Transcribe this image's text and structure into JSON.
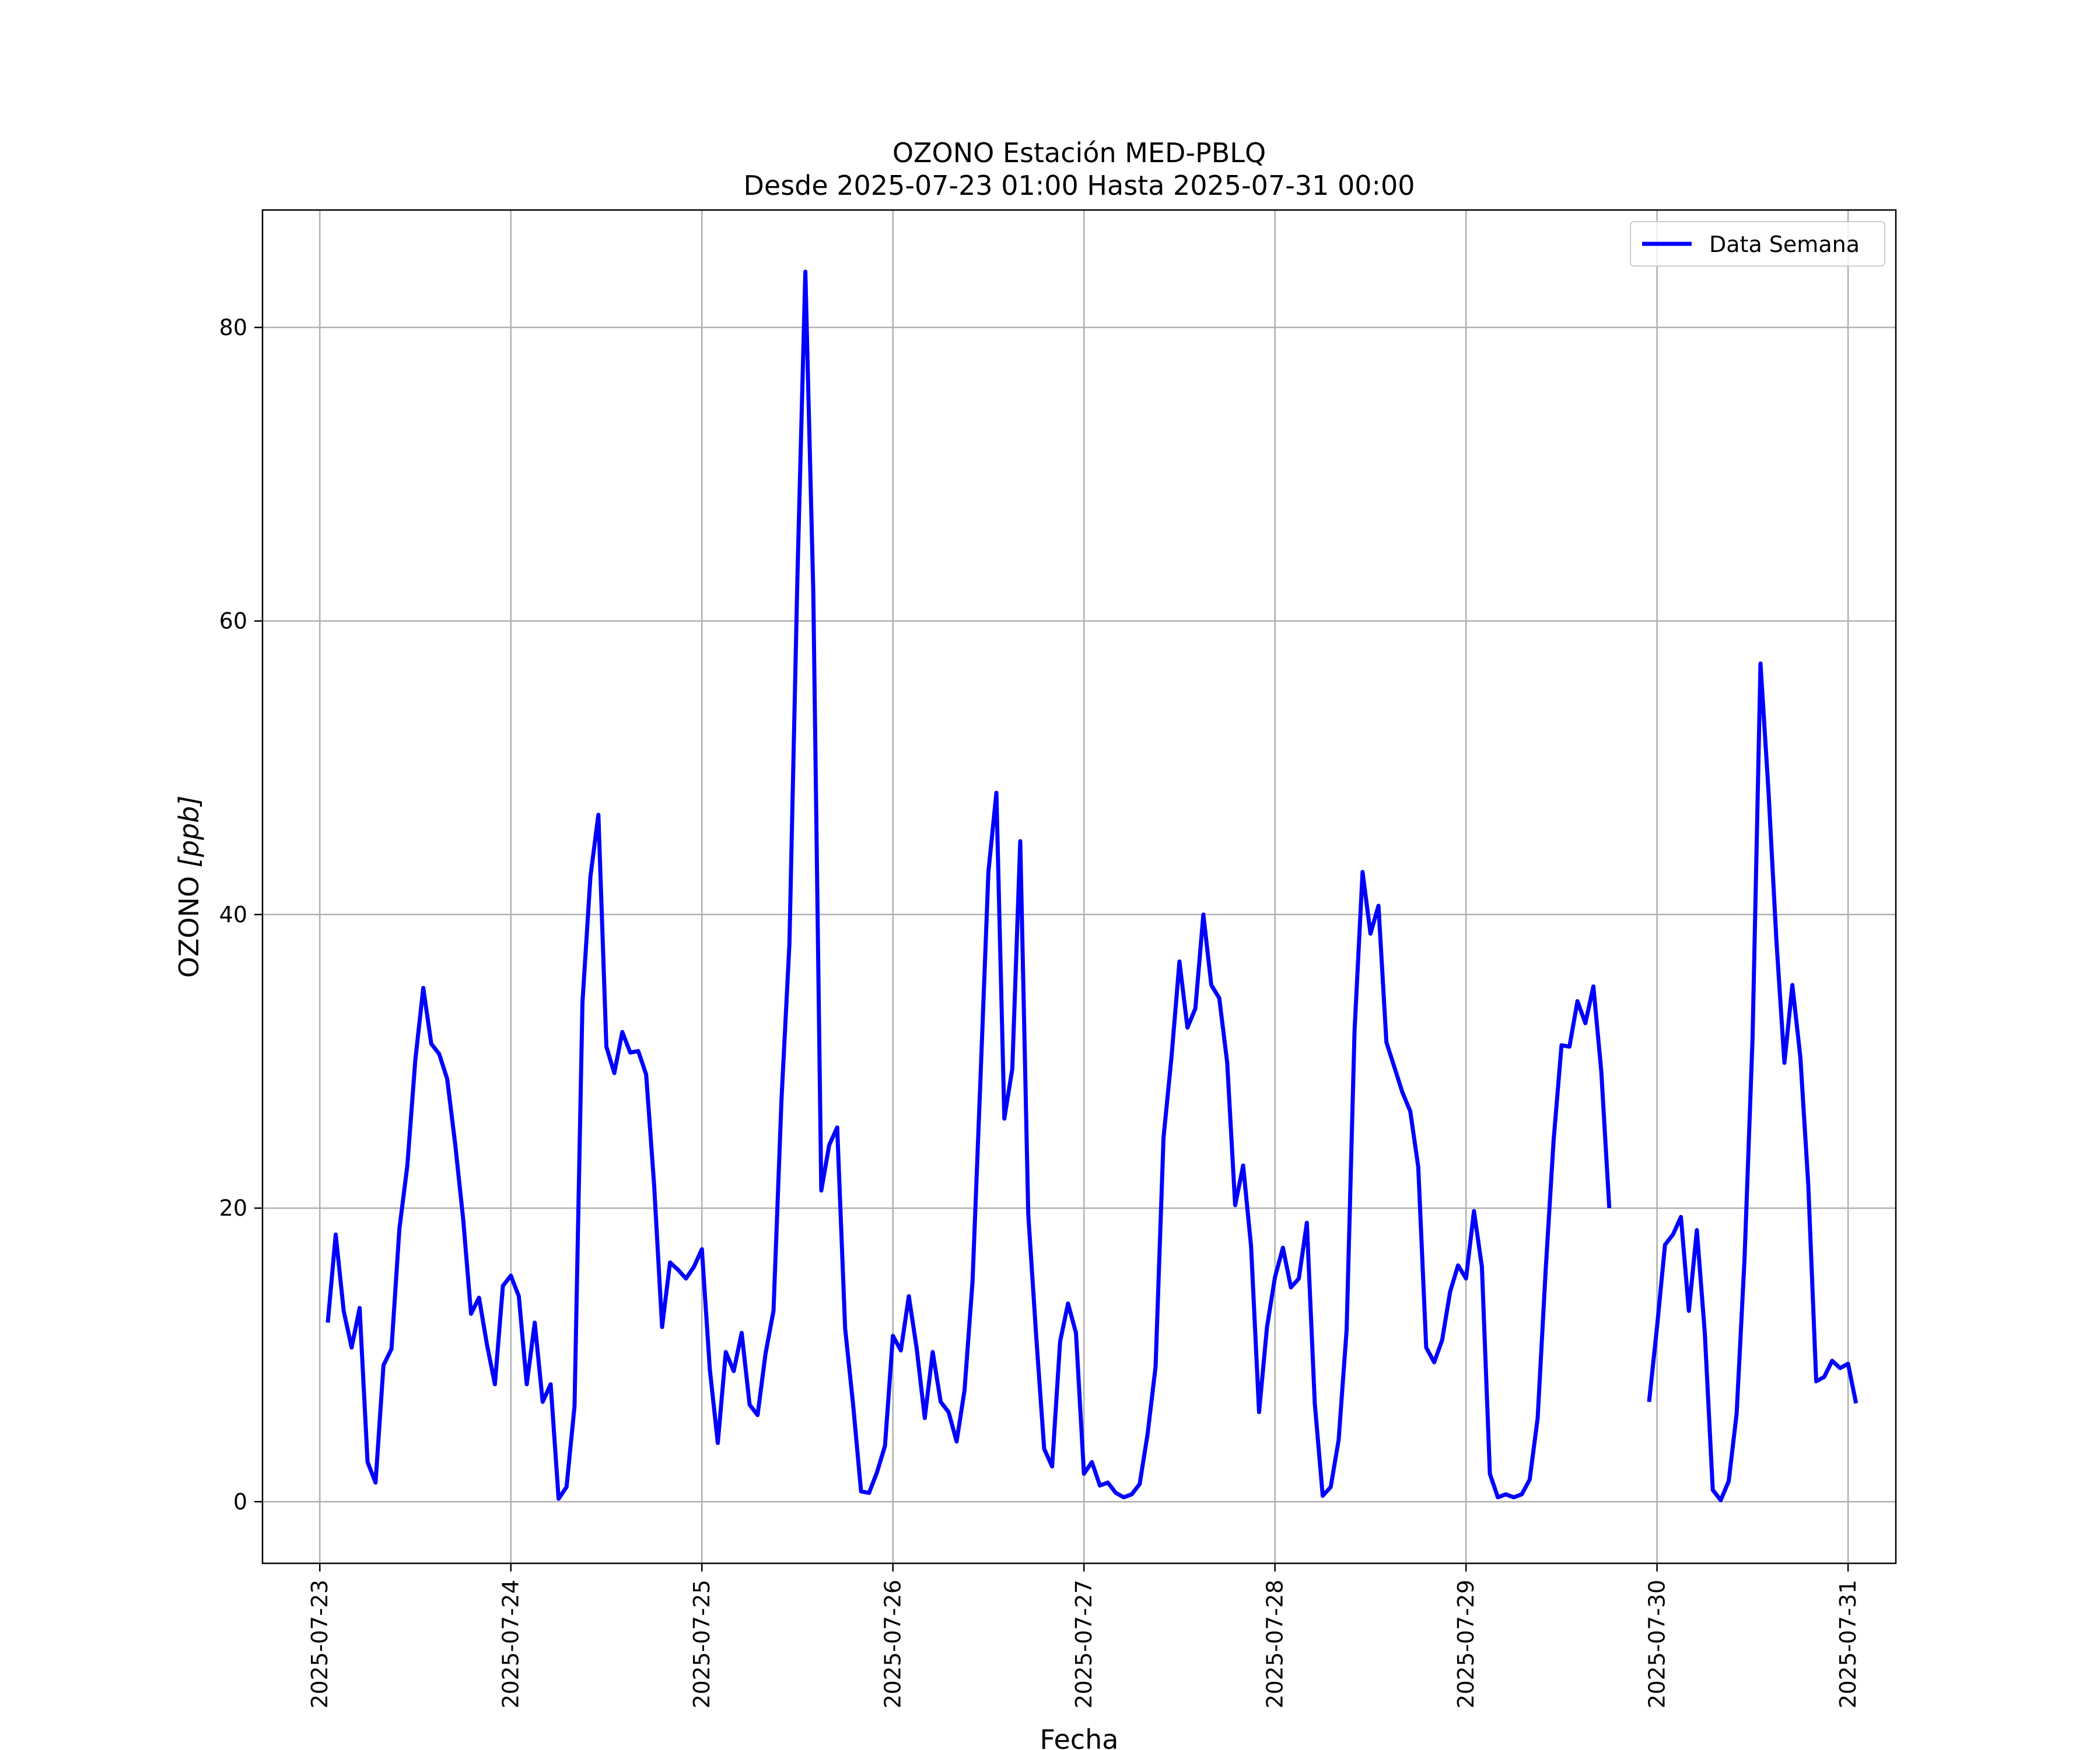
{
  "chart_data": {
    "type": "line",
    "title": "OZONO Estación MED-PBLQ",
    "subtitle": "Desde 2025-07-23 01:00 Hasta 2025-07-31 00:00",
    "xlabel": "Fecha",
    "ylabel_main": "OZONO ",
    "ylabel_unit": "[ppb]",
    "x_ticks": [
      "2025-07-23",
      "2025-07-24",
      "2025-07-25",
      "2025-07-26",
      "2025-07-27",
      "2025-07-28",
      "2025-07-29",
      "2025-07-30",
      "2025-07-31"
    ],
    "y_ticks": [
      "0",
      "20",
      "40",
      "60",
      "80"
    ],
    "xlim": [
      "2025-07-22 16:48",
      "2025-07-31 06:00"
    ],
    "ylim": [
      -4.2,
      88
    ],
    "grid": true,
    "legend_position": "top-right",
    "series": [
      {
        "name": "Data Semana",
        "color": "#0000ff",
        "start": "2025-07-23 01:00",
        "interval_hours": 1,
        "values": [
          12.2,
          18.2,
          13.0,
          10.5,
          13.2,
          2.7,
          1.3,
          9.3,
          10.4,
          18.6,
          22.9,
          30.1,
          35.0,
          31.2,
          30.5,
          28.8,
          24.4,
          19.3,
          12.8,
          13.9,
          10.7,
          8.0,
          14.7,
          15.4,
          14.0,
          8.0,
          12.2,
          6.8,
          8.0,
          0.2,
          1.0,
          6.5,
          34.0,
          42.6,
          46.8,
          31.0,
          29.2,
          32.0,
          30.6,
          30.7,
          29.1,
          21.6,
          11.9,
          16.3,
          15.8,
          15.2,
          16.0,
          17.2,
          9.0,
          4.0,
          10.2,
          8.9,
          11.5,
          6.6,
          5.9,
          10.1,
          13.0,
          27.4,
          38.0,
          63.0,
          83.8,
          62.0,
          21.2,
          24.3,
          25.5,
          11.8,
          6.6,
          0.7,
          0.6,
          2.0,
          3.8,
          11.3,
          10.3,
          14.0,
          10.4,
          5.7,
          10.2,
          6.8,
          6.1,
          4.1,
          7.6,
          15.0,
          28.8,
          42.9,
          48.3,
          26.1,
          29.5,
          45.0,
          19.6,
          11.3,
          3.6,
          2.4,
          10.9,
          13.5,
          11.5,
          1.9,
          2.7,
          1.1,
          1.3,
          0.6,
          0.3,
          0.5,
          1.2,
          4.6,
          9.2,
          24.8,
          30.3,
          36.8,
          32.3,
          33.6,
          40.0,
          35.2,
          34.3,
          29.9,
          20.2,
          22.9,
          17.4,
          6.1,
          11.9,
          15.3,
          17.3,
          14.6,
          15.2,
          19.0,
          6.7,
          0.4,
          1.0,
          4.2,
          11.7,
          32.1,
          42.9,
          38.7,
          40.6,
          31.3,
          29.6,
          27.9,
          26.6,
          22.8,
          10.5,
          9.5,
          11.0,
          14.3,
          16.1,
          15.2,
          19.8,
          16.0,
          1.9,
          0.3,
          0.5,
          0.3,
          0.5,
          1.5,
          5.7,
          15.7,
          24.6,
          31.1,
          31.0,
          34.1,
          32.6,
          35.1,
          29.3,
          20.0,
          null,
          null,
          null,
          null,
          6.8,
          11.9,
          17.5,
          18.2,
          19.4,
          13.0,
          18.5,
          11.5,
          0.8,
          0.1,
          1.4,
          6.0,
          16.6,
          31.6,
          57.1,
          48.4,
          38.2,
          29.9,
          35.2,
          30.3,
          21.6,
          8.2,
          8.5,
          9.6,
          9.1,
          9.4,
          6.7
        ]
      }
    ]
  }
}
